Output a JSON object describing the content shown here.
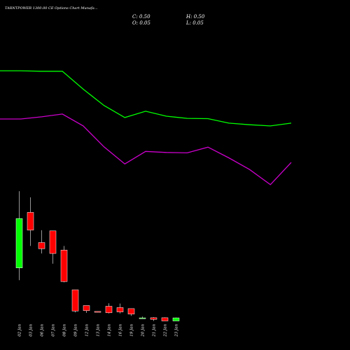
{
  "header": {
    "title": "TARNTPOWER 1300.00 CE Options Chart Munafa...",
    "close_label": "C: 0.50",
    "high_label": "H: 0.50",
    "open_label": "O: 0.05",
    "low_label": "L: 0.05"
  },
  "colors": {
    "background": "#000000",
    "bullish": "#00ff00",
    "bearish": "#ff0000",
    "line_upper": "#00ff00",
    "line_lower": "#cc00cc",
    "text": "#ffffff"
  },
  "chart_data": [
    {
      "type": "line",
      "x_index": [
        0,
        1,
        2,
        3,
        4,
        5,
        6,
        7,
        8,
        9,
        10,
        11,
        12,
        13,
        14
      ],
      "series": [
        {
          "values": [
            0.35,
            0.35,
            0.39,
            0.39,
            1.86,
            3.2,
            4.19,
            3.67,
            4.08,
            4.26,
            4.28,
            4.65,
            4.78,
            4.88,
            4.65
          ]
        },
        {
          "values": [
            4.31,
            4.31,
            4.13,
            3.9,
            4.88,
            6.6,
            8.0,
            6.97,
            7.06,
            7.09,
            6.62,
            7.5,
            8.46,
            9.7,
            7.88
          ]
        }
      ],
      "grid": false,
      "legend": "none"
    },
    {
      "type": "candlestick",
      "categories": [
        "02 Jan",
        "03 Jan",
        "06 Jan",
        "07 Jan",
        "08 Jan",
        "09 Jan",
        "12 Jan",
        "13 Jan",
        "14 Jan",
        "16 Jan",
        "19 Jan",
        "20 Jan",
        "21 Jan",
        "22 Jan",
        "23 Jan"
      ],
      "open": [
        7.8,
        15.9,
        11.5,
        13.2,
        10.4,
        4.6,
        2.3,
        1.44,
        2.2,
        2.0,
        1.85,
        0.5,
        0.52,
        0.52,
        0.05
      ],
      "high": [
        19.0,
        18.1,
        13.3,
        13.2,
        11.0,
        4.6,
        2.3,
        1.44,
        2.64,
        2.6,
        1.85,
        0.7,
        0.6,
        0.57,
        0.55
      ],
      "low": [
        6.0,
        11.0,
        9.9,
        8.4,
        5.7,
        1.3,
        1.23,
        1.32,
        1.15,
        1.15,
        0.8,
        0.45,
        0.05,
        0.05,
        0.05
      ],
      "close": [
        15.0,
        13.3,
        10.6,
        9.9,
        5.8,
        1.5,
        1.55,
        1.32,
        1.25,
        1.37,
        1.05,
        0.5,
        0.28,
        0.05,
        0.5
      ],
      "grid": false,
      "legend": "none"
    }
  ]
}
